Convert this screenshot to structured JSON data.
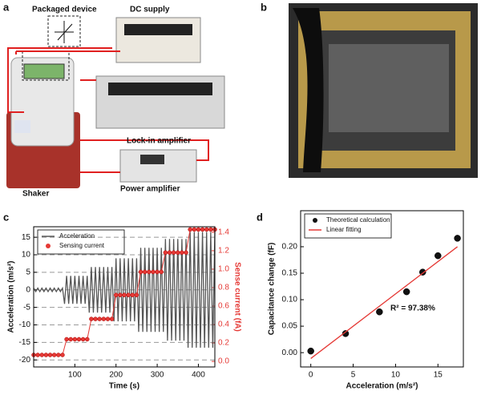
{
  "figure": {
    "panel_labels": [
      "a",
      "b",
      "c",
      "d"
    ],
    "setup_labels": [
      "Packaged device",
      "DC supply",
      "Lock-in amplifier",
      "Shaker",
      "Power amplifier"
    ]
  },
  "chart_data": [
    {
      "type": "line",
      "xlabel": "Time (s)",
      "ylabel": "Acceleration (m/s²)",
      "y2label": "Sense current (fA)",
      "xlim": [
        0,
        440
      ],
      "xticks": [
        100,
        200,
        300,
        400
      ],
      "ylim": [
        -22,
        18
      ],
      "yticks": [
        -20,
        -15,
        -10,
        -5,
        0,
        5,
        10,
        15
      ],
      "y2lim": [
        -0.06,
        1.46
      ],
      "y2ticks": [
        {
          "value": 0,
          "label": "0.0"
        },
        0.2,
        0.4,
        0.6,
        0.8,
        {
          "value": 1,
          "label": "1.0"
        },
        1.2,
        1.4
      ],
      "grid": true,
      "legend": "upper left",
      "series": [
        {
          "name": "Acceleration",
          "color": "#555555",
          "marker": false,
          "x": [
            0,
            5,
            10,
            15,
            20,
            25,
            30,
            35,
            40,
            45,
            50,
            55,
            60,
            65,
            70,
            75,
            80,
            85,
            90,
            95,
            100,
            105,
            110,
            115,
            120,
            125,
            130,
            135,
            140,
            145,
            150,
            155,
            160,
            165,
            170,
            175,
            180,
            185,
            190,
            195,
            200,
            205,
            210,
            215,
            220,
            225,
            230,
            235,
            240,
            245,
            250,
            255,
            260,
            265,
            270,
            275,
            280,
            285,
            290,
            295,
            300,
            305,
            310,
            315,
            320,
            325,
            330,
            335,
            340,
            345,
            350,
            355,
            360,
            365,
            370,
            375,
            380,
            385,
            390,
            395,
            400,
            405,
            410,
            415,
            420,
            425,
            430,
            435,
            440
          ],
          "values": [
            0.5,
            -0.5,
            0.5,
            -0.5,
            0.5,
            -0.5,
            0.5,
            -0.5,
            0.5,
            -0.5,
            0.5,
            -0.5,
            0.5,
            -0.5,
            0.5,
            -4,
            4,
            -4,
            4,
            -4,
            4,
            -4,
            4,
            -4,
            4,
            -4,
            4,
            -6.5,
            6.5,
            -6.5,
            6.5,
            -6.5,
            6.5,
            -6.5,
            6.5,
            -6.5,
            6.5,
            -6.5,
            6.5,
            -9,
            9,
            -9,
            9,
            -9,
            9,
            -9,
            9,
            -9,
            9,
            -9,
            9,
            -12,
            12,
            -12,
            12,
            -12,
            12,
            -12,
            12,
            -12,
            12,
            -12,
            12,
            -12,
            14.5,
            -14.5,
            14.5,
            -14.5,
            14.5,
            -14.5,
            14.5,
            -14.5,
            14.5,
            -14.5,
            14.5,
            -16.5,
            16.5,
            -16.5,
            16.5,
            -16.5,
            16.5,
            -16.5,
            16.5,
            -16.5,
            16.5,
            -16.5,
            16.5,
            -16.5,
            16.5
          ]
        },
        {
          "name": "Sensing current",
          "color": "#e53935",
          "marker": true,
          "axis": "y2",
          "x": [
            0,
            10,
            20,
            30,
            40,
            50,
            60,
            70,
            80,
            90,
            100,
            110,
            120,
            130,
            140,
            150,
            160,
            170,
            180,
            190,
            200,
            210,
            220,
            230,
            240,
            250,
            260,
            270,
            280,
            290,
            300,
            310,
            320,
            330,
            340,
            350,
            360,
            370,
            380,
            390,
            400,
            410,
            420,
            430,
            440
          ],
          "values": [
            0.07,
            0.07,
            0.07,
            0.07,
            0.07,
            0.07,
            0.07,
            0.07,
            0.24,
            0.24,
            0.24,
            0.24,
            0.24,
            0.24,
            0.46,
            0.46,
            0.46,
            0.46,
            0.46,
            0.46,
            0.72,
            0.72,
            0.72,
            0.72,
            0.72,
            0.72,
            0.97,
            0.97,
            0.97,
            0.97,
            0.97,
            0.97,
            1.18,
            1.18,
            1.18,
            1.18,
            1.18,
            1.18,
            1.43,
            1.43,
            1.43,
            1.43,
            1.43,
            1.43,
            1.43
          ]
        }
      ]
    },
    {
      "type": "scatter",
      "xlabel": "Acceleration (m/s²)",
      "ylabel": "Capacitance change (fF)",
      "annotation": "R² = 97.38%",
      "xlim": [
        -1.2,
        18
      ],
      "xticks": [
        0,
        5,
        10,
        15
      ],
      "ylim": [
        -0.027,
        0.268
      ],
      "yticks": [
        {
          "value": 0,
          "label": "0.00"
        },
        {
          "value": 0.05,
          "label": "0.05"
        },
        {
          "value": 0.1,
          "label": "0.10"
        },
        {
          "value": 0.15,
          "label": "0.15"
        },
        {
          "value": 0.2,
          "label": "0.20"
        }
      ],
      "grid": false,
      "legend": "upper left",
      "series": [
        {
          "name": "Theoretical calculation",
          "color": "#111111",
          "marker": true,
          "x": [
            0,
            4.1,
            8.1,
            11.3,
            13.2,
            15,
            17.3
          ],
          "values": [
            0.003,
            0.036,
            0.077,
            0.115,
            0.152,
            0.183,
            0.216
          ]
        },
        {
          "name": "Linear fitting",
          "color": "#e53935",
          "marker": false,
          "x": [
            0,
            17.3
          ],
          "values": [
            -0.011,
            0.2
          ]
        }
      ]
    }
  ]
}
